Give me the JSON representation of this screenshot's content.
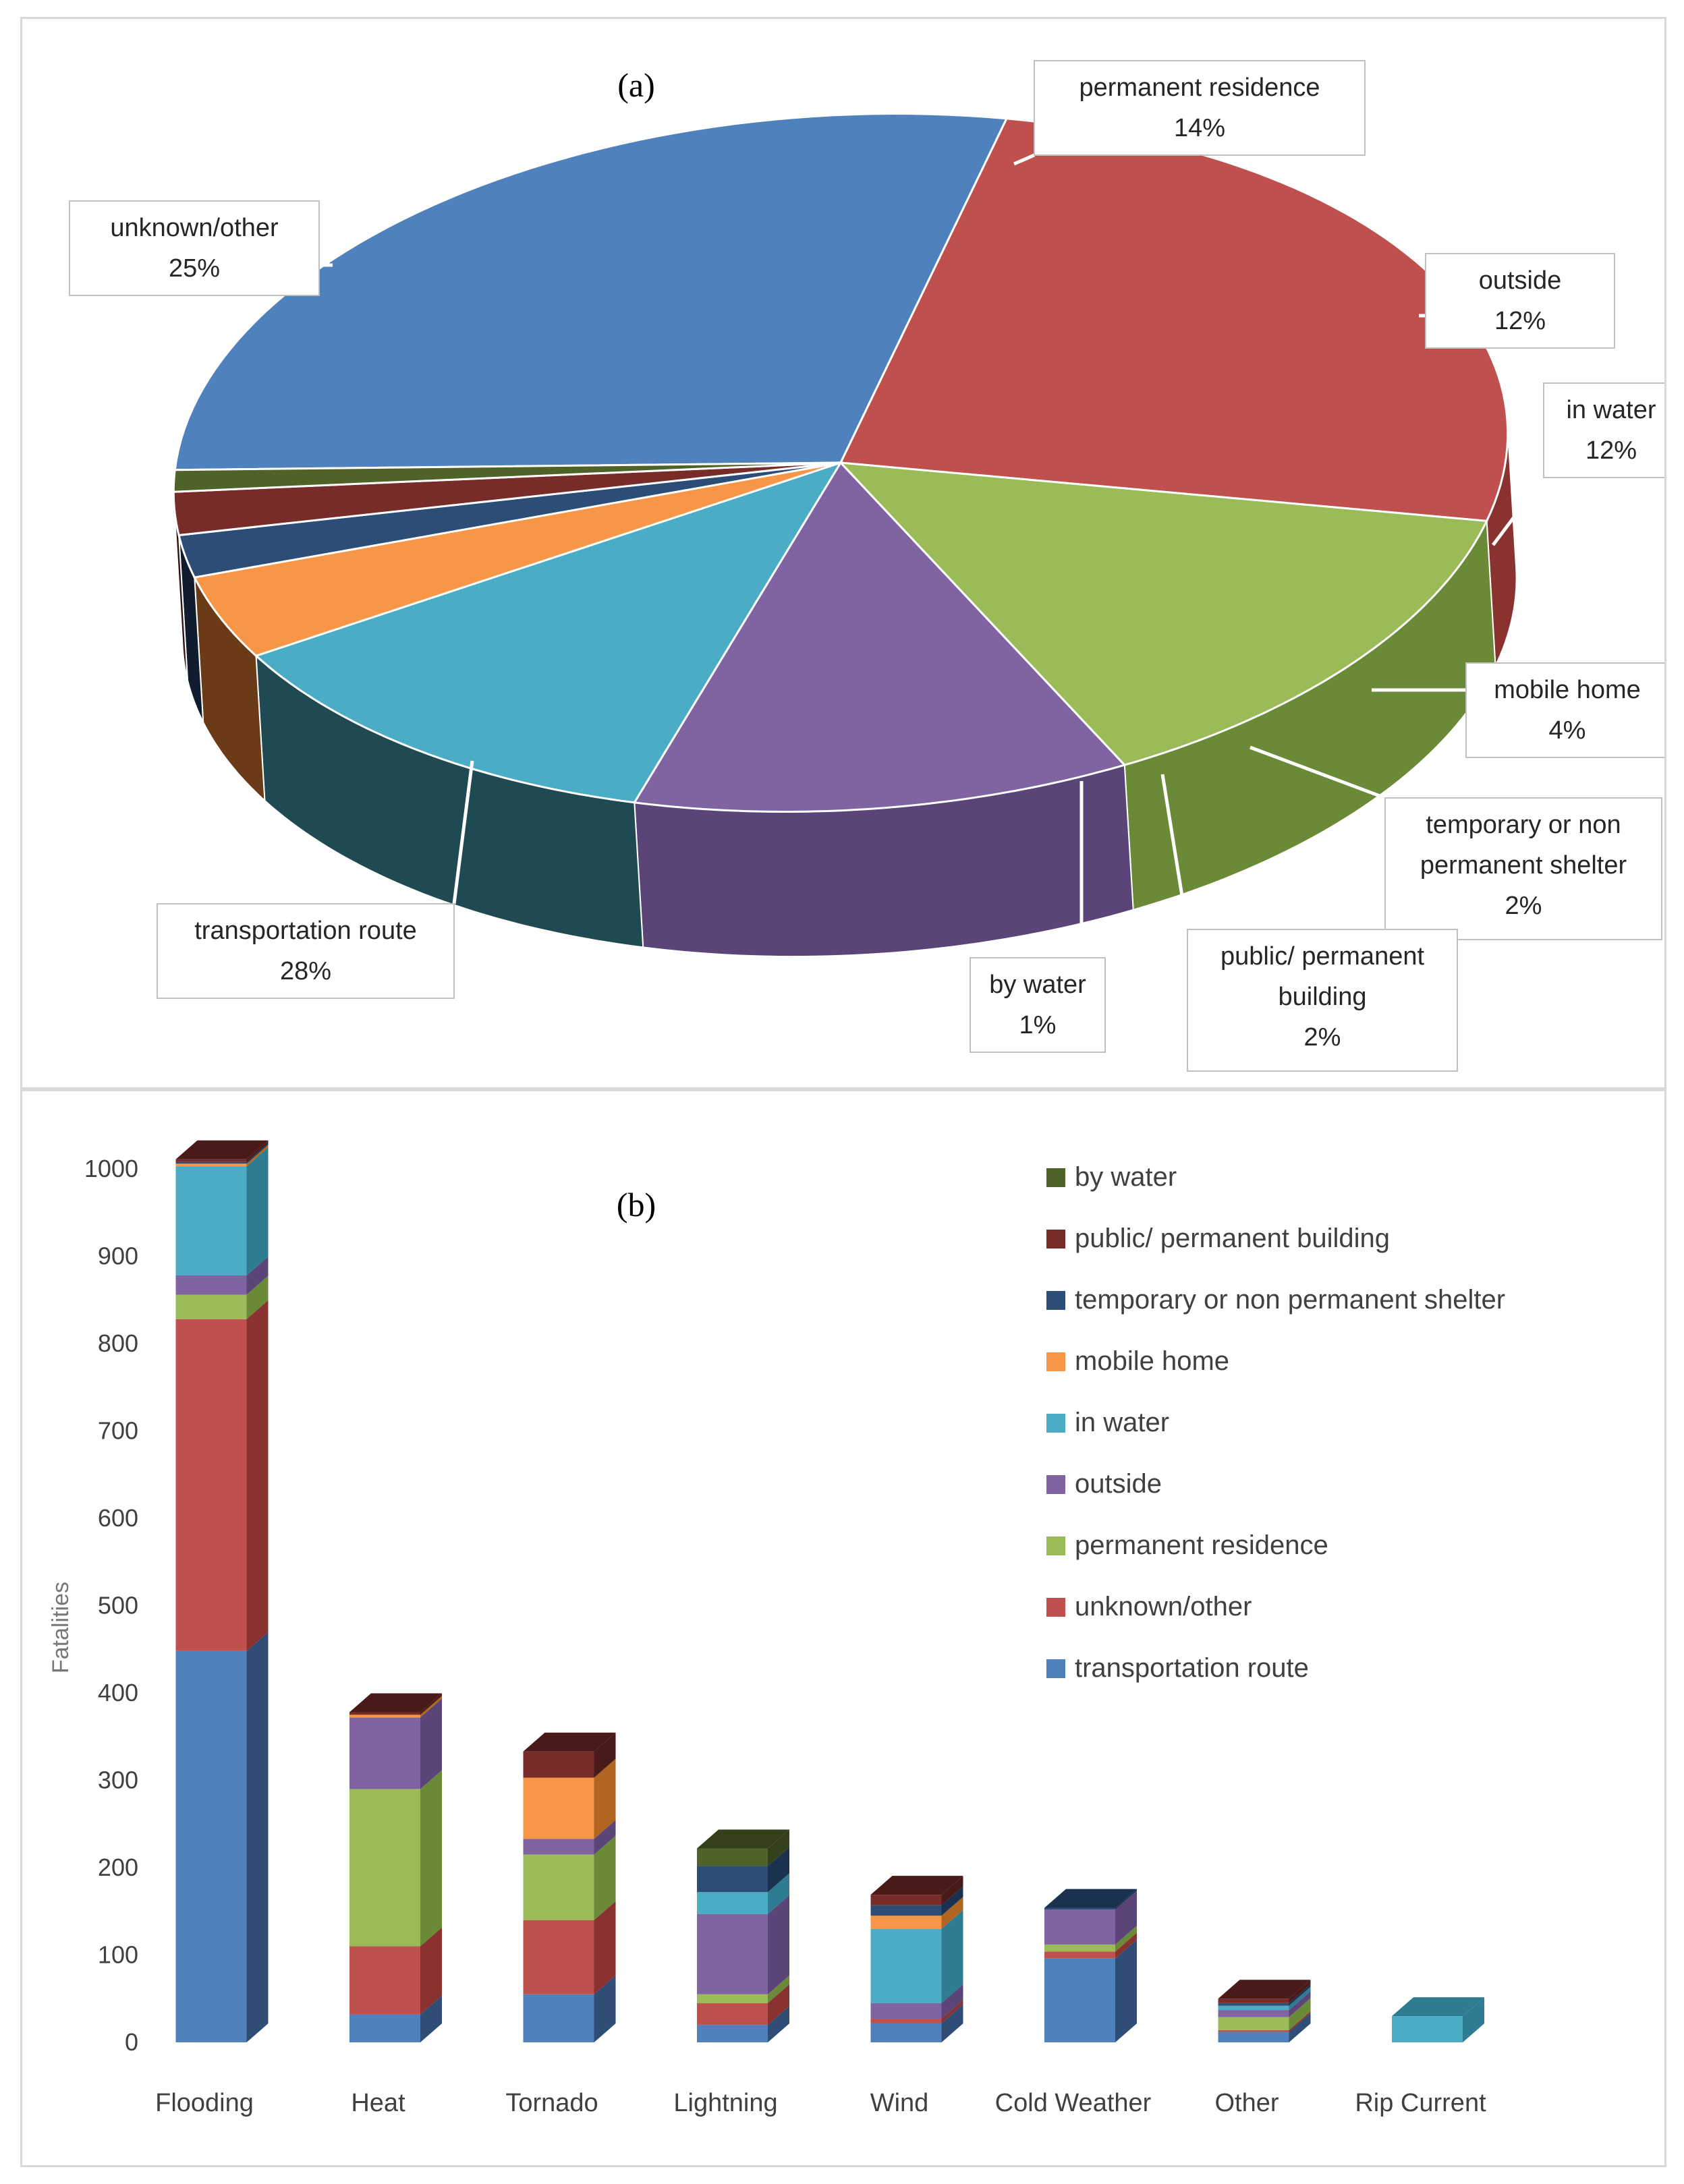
{
  "panel_a": {
    "label": "(a)",
    "chart_data": {
      "type": "pie",
      "title": "(a)",
      "slices": [
        {
          "name": "transportation route",
          "value": 28,
          "label_pct": "28%",
          "color": "#4f81bd",
          "side": "#2f4d75"
        },
        {
          "name": "unknown/other",
          "value": 25,
          "label_pct": "25%",
          "color": "#c0504d",
          "side": "#8a3230"
        },
        {
          "name": "permanent residence",
          "value": 14,
          "label_pct": "14%",
          "color": "#9bbb59",
          "side": "#6b8a37"
        },
        {
          "name": "outside",
          "value": 12,
          "label_pct": "12%",
          "color": "#8064a2",
          "side": "#5a4478"
        },
        {
          "name": "in water",
          "value": 12,
          "label_pct": "12%",
          "color": "#4bacc6",
          "side": "#1f4a52"
        },
        {
          "name": "mobile home",
          "value": 4,
          "label_pct": "4%",
          "color": "#f79646",
          "side": "#6b3a16"
        },
        {
          "name": "temporary or non permanent shelter",
          "value": 2,
          "label_pct": "2%",
          "color": "#2c4d75",
          "side": "#111d2e"
        },
        {
          "name": "public/ permanent building",
          "value": 2,
          "label_pct": "2%",
          "color": "#772c2a",
          "side": "#321111"
        },
        {
          "name": "by water",
          "value": 1,
          "label_pct": "1%",
          "color": "#4f6228",
          "side": "#2c3a13"
        }
      ],
      "callouts": [
        {
          "lines": [
            "permanent residence"
          ],
          "pct": "14%"
        },
        {
          "lines": [
            "unknown/other"
          ],
          "pct": "25%"
        },
        {
          "lines": [
            "outside"
          ],
          "pct": "12%"
        },
        {
          "lines": [
            "in water"
          ],
          "pct": "12%"
        },
        {
          "lines": [
            "mobile home"
          ],
          "pct": "4%"
        },
        {
          "lines": [
            "temporary or non",
            "permanent shelter"
          ],
          "pct": "2%"
        },
        {
          "lines": [
            "public/ permanent",
            "building"
          ],
          "pct": "2%"
        },
        {
          "lines": [
            "by water"
          ],
          "pct": "1%"
        },
        {
          "lines": [
            "transportation route"
          ],
          "pct": "28%"
        }
      ]
    }
  },
  "panel_b": {
    "label": "(b)",
    "chart_data": {
      "type": "bar",
      "stacked": true,
      "title": "(b)",
      "ylabel": "Fatalities",
      "xlabel": "",
      "ylim": [
        0,
        1000
      ],
      "yticks": [
        "0",
        "100",
        "200",
        "300",
        "400",
        "500",
        "600",
        "700",
        "800",
        "900",
        "1000"
      ],
      "categories": [
        "Flooding",
        "Heat",
        "Tornado",
        "Lightning",
        "Wind",
        "Cold Weather",
        "Other",
        "Rip Current"
      ],
      "series": [
        {
          "name": "transportation route",
          "color": "#4f81bd",
          "side": "#2f4d75",
          "values": [
            448,
            32,
            55,
            20,
            22,
            96,
            12,
            0
          ]
        },
        {
          "name": "unknown/other",
          "color": "#c0504d",
          "side": "#8a3230",
          "values": [
            380,
            78,
            85,
            25,
            5,
            8,
            2,
            0
          ]
        },
        {
          "name": "permanent residence",
          "color": "#9bbb59",
          "side": "#6b8a37",
          "values": [
            28,
            180,
            75,
            10,
            0,
            8,
            15,
            0
          ]
        },
        {
          "name": "outside",
          "color": "#8064a2",
          "side": "#5a4478",
          "values": [
            22,
            82,
            18,
            92,
            18,
            40,
            8,
            0
          ]
        },
        {
          "name": "in water",
          "color": "#4bacc6",
          "side": "#2e7c91",
          "values": [
            125,
            0,
            0,
            25,
            85,
            0,
            5,
            30
          ]
        },
        {
          "name": "mobile home",
          "color": "#f79646",
          "side": "#b06521",
          "values": [
            3,
            3,
            70,
            0,
            15,
            0,
            0,
            0
          ]
        },
        {
          "name": "temporary or non permanent shelter",
          "color": "#2c4d75",
          "side": "#1b3150",
          "values": [
            2,
            0,
            0,
            30,
            12,
            2,
            3,
            0
          ]
        },
        {
          "name": "public/ permanent building",
          "color": "#772c2a",
          "side": "#4a1a19",
          "values": [
            3,
            3,
            30,
            0,
            12,
            0,
            5,
            0
          ]
        },
        {
          "name": "by water",
          "color": "#4f6228",
          "side": "#33401a",
          "values": [
            0,
            0,
            0,
            20,
            0,
            0,
            0,
            0
          ]
        }
      ],
      "legend": [
        "by water",
        "public/ permanent building",
        "temporary or non permanent shelter",
        "mobile home",
        "in water",
        "outside",
        "permanent residence",
        "unknown/other",
        "transportation route"
      ],
      "legend_colors": [
        "#4f6228",
        "#772c2a",
        "#2c4d75",
        "#f79646",
        "#4bacc6",
        "#8064a2",
        "#9bbb59",
        "#c0504d",
        "#4f81bd"
      ]
    }
  }
}
